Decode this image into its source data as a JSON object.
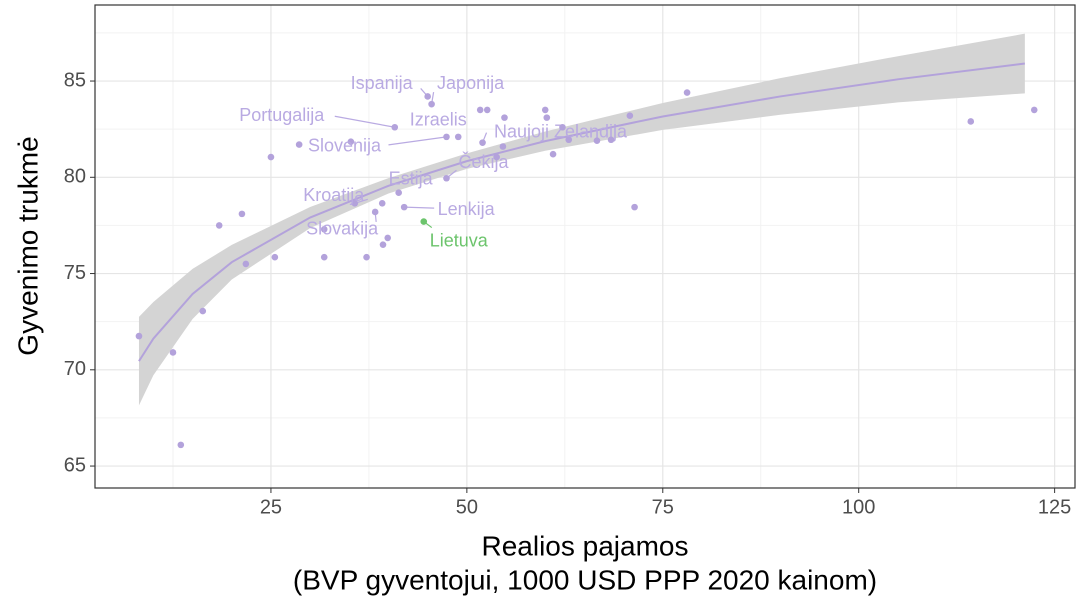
{
  "chart_data": {
    "type": "scatter",
    "x_label": "Realios pajamos",
    "x_label_sub": "(BVP gyventojui, 1000 USD PPP 2020 kainom)",
    "y_label": "Gyvenimo trukmė",
    "xlim": [
      2.55,
      127.6
    ],
    "ylim": [
      63.86,
      88.95
    ],
    "xticks": [
      25,
      50,
      75,
      100,
      125
    ],
    "yticks": [
      65,
      70,
      75,
      80,
      85
    ],
    "xminor": [
      12.5,
      37.5,
      62.5,
      87.5,
      112.5
    ],
    "yminor": [
      67.5,
      72.5,
      77.5,
      82.5,
      87.5
    ],
    "grid": true,
    "color": "#b3a2db",
    "label_color": "#b9aae2",
    "highlight": "Lietuva",
    "highlight_color": "#6cc46c",
    "x": [
      8.16,
      12.5,
      13.5,
      16.3,
      18.4,
      21.3,
      21.8,
      25.0,
      25.5,
      28.6,
      31.8,
      31.8,
      35.2,
      35.7,
      37.2,
      38.3,
      39.2,
      39.3,
      39.9,
      40.8,
      41.3,
      42.0,
      44.5,
      45.0,
      45.5,
      47.4,
      47.4,
      48.9,
      51.7,
      52.6,
      52.0,
      53.8,
      54.6,
      54.8,
      60.0,
      60.2,
      61.0,
      62.2,
      63.0,
      66.6,
      68.4,
      70.8,
      71.4,
      78.1,
      114.3,
      122.4
    ],
    "y": [
      71.75,
      70.9,
      66.1,
      73.05,
      77.5,
      78.1,
      75.5,
      81.05,
      75.85,
      81.7,
      77.3,
      75.85,
      81.85,
      78.65,
      75.85,
      78.2,
      78.65,
      76.5,
      76.85,
      82.6,
      79.2,
      78.45,
      77.7,
      84.2,
      83.8,
      82.1,
      79.95,
      82.1,
      83.5,
      83.5,
      81.8,
      81.05,
      81.6,
      83.1,
      83.5,
      83.1,
      81.2,
      82.6,
      81.95,
      81.9,
      81.95,
      83.2,
      78.45,
      84.4,
      82.9,
      83.5
    ],
    "labels": [
      null,
      null,
      null,
      null,
      null,
      null,
      null,
      null,
      null,
      null,
      null,
      null,
      null,
      "Kroatija",
      null,
      "Slovakija",
      null,
      null,
      null,
      "Portugalija",
      "Estija",
      "Lenkija",
      "Lietuva",
      "Ispanija",
      "Japonija",
      "Slovenija",
      "Čekija",
      "Izraelis",
      null,
      null,
      "Naujoji Zelandija",
      null,
      null,
      null,
      null,
      null,
      null,
      null,
      null,
      null,
      null,
      null,
      null,
      null,
      null,
      null
    ],
    "fit": {
      "color": "#b3a2db",
      "band_color": "#d4d4d4",
      "x": [
        8.16,
        10,
        15,
        20,
        30,
        40,
        50,
        60,
        75,
        90,
        105,
        121.2
      ],
      "values": [
        70.45,
        71.62,
        73.94,
        75.59,
        77.91,
        79.56,
        80.84,
        81.88,
        83.16,
        84.2,
        85.09,
        85.91
      ],
      "lower": [
        68.15,
        69.72,
        72.64,
        74.69,
        77.36,
        79.16,
        80.44,
        81.38,
        82.46,
        83.25,
        83.89,
        84.36
      ],
      "upper": [
        72.75,
        73.52,
        75.24,
        76.49,
        78.46,
        79.96,
        81.24,
        82.38,
        83.86,
        85.15,
        86.29,
        87.46
      ]
    }
  }
}
